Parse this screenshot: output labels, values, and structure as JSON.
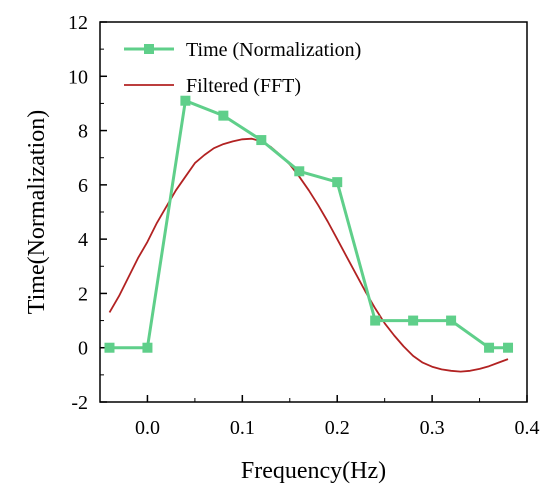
{
  "chart_data": {
    "type": "line",
    "title": "",
    "xlabel": "Frequency(Hz)",
    "ylabel": "Time(Normalization)",
    "xlim": [
      -0.05,
      0.4
    ],
    "ylim": [
      -2,
      12
    ],
    "x_ticks": [
      0.0,
      0.1,
      0.2,
      0.3,
      0.4
    ],
    "x_tick_labels": [
      "0.0",
      "0.1",
      "0.2",
      "0.3",
      "0.4"
    ],
    "y_ticks": [
      -2,
      0,
      2,
      4,
      6,
      8,
      10,
      12
    ],
    "y_tick_labels": [
      "-2",
      "0",
      "2",
      "4",
      "6",
      "8",
      "10",
      "12"
    ],
    "grid": false,
    "legend_position": "top-left",
    "series": [
      {
        "name": "Time (Normalization)",
        "color": "#5fcf8a",
        "marker": "square",
        "x": [
          -0.04,
          0.0,
          0.04,
          0.08,
          0.12,
          0.16,
          0.2,
          0.24,
          0.28,
          0.32,
          0.36,
          0.38
        ],
        "y": [
          0.0,
          0.0,
          9.1,
          8.55,
          7.65,
          6.5,
          6.1,
          1.0,
          1.0,
          1.0,
          0.0,
          0.0
        ]
      },
      {
        "name": "Filtered (FFT)",
        "color": "#b22222",
        "marker": "none",
        "x": [
          -0.04,
          -0.03,
          -0.02,
          -0.01,
          0.0,
          0.01,
          0.02,
          0.03,
          0.04,
          0.05,
          0.06,
          0.07,
          0.08,
          0.09,
          0.1,
          0.11,
          0.12,
          0.13,
          0.14,
          0.15,
          0.16,
          0.17,
          0.18,
          0.19,
          0.2,
          0.21,
          0.22,
          0.23,
          0.24,
          0.25,
          0.26,
          0.27,
          0.28,
          0.29,
          0.3,
          0.31,
          0.32,
          0.33,
          0.34,
          0.35,
          0.36,
          0.37,
          0.38
        ],
        "y": [
          1.3,
          1.9,
          2.6,
          3.3,
          3.9,
          4.6,
          5.2,
          5.8,
          6.3,
          6.8,
          7.1,
          7.35,
          7.5,
          7.6,
          7.68,
          7.7,
          7.6,
          7.4,
          7.1,
          6.75,
          6.3,
          5.8,
          5.25,
          4.65,
          4.0,
          3.35,
          2.7,
          2.05,
          1.45,
          0.9,
          0.45,
          0.05,
          -0.3,
          -0.55,
          -0.7,
          -0.8,
          -0.85,
          -0.88,
          -0.85,
          -0.78,
          -0.68,
          -0.55,
          -0.42
        ]
      }
    ]
  }
}
